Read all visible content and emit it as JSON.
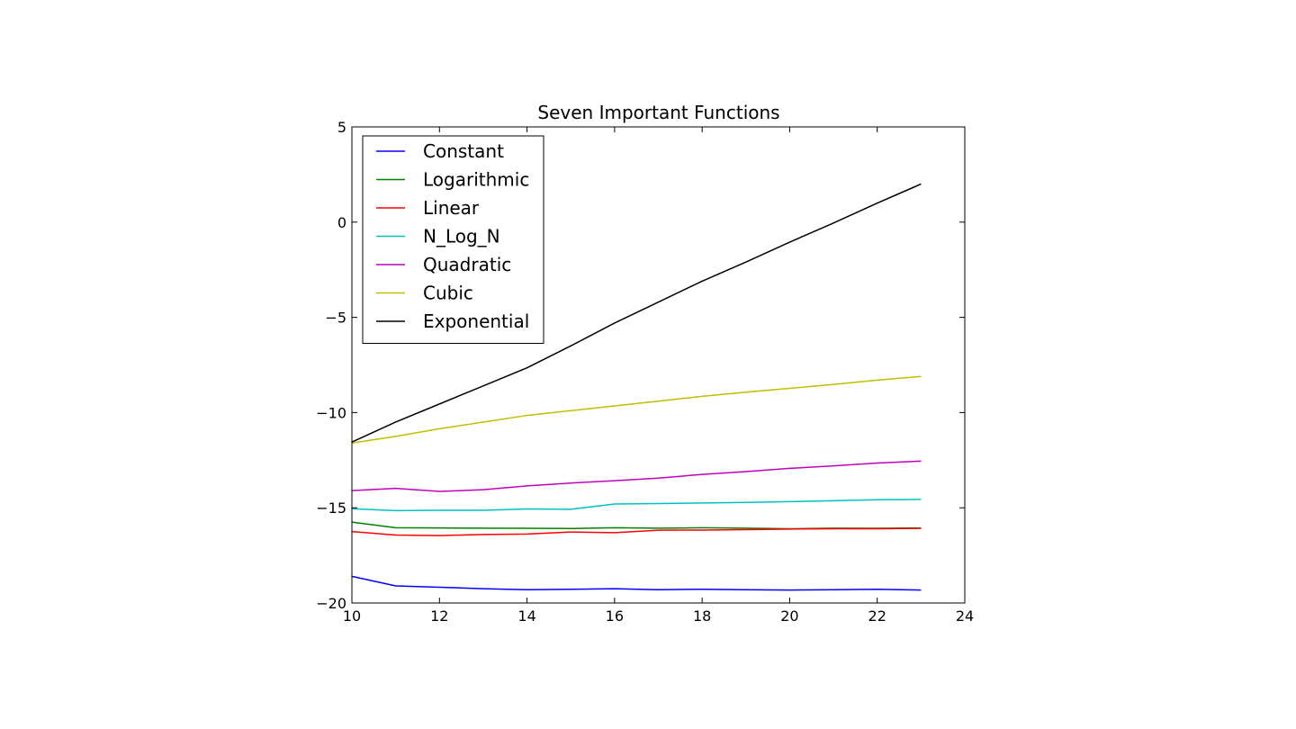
{
  "chart_data": {
    "type": "line",
    "title": "Seven Important Functions",
    "xlabel": "",
    "ylabel": "",
    "xlim": [
      10,
      24
    ],
    "ylim": [
      -20,
      5
    ],
    "x_ticks": [
      "10",
      "12",
      "14",
      "16",
      "18",
      "20",
      "22",
      "24"
    ],
    "y_ticks": [
      "5",
      "0",
      "−5",
      "−10",
      "−15",
      "−20"
    ],
    "grid": false,
    "legend_position": "top-left",
    "x": [
      10,
      11,
      12,
      13,
      14,
      15,
      16,
      17,
      18,
      19,
      20,
      21,
      22,
      23
    ],
    "series": [
      {
        "name": "Constant",
        "color": "#0000ff",
        "values": [
          -18.6,
          -19.1,
          -19.17,
          -19.25,
          -19.3,
          -19.28,
          -19.25,
          -19.3,
          -19.28,
          -19.3,
          -19.32,
          -19.3,
          -19.28,
          -19.32
        ]
      },
      {
        "name": "Logarithmic",
        "color": "#008000",
        "values": [
          -15.75,
          -16.05,
          -16.06,
          -16.07,
          -16.08,
          -16.09,
          -16.05,
          -16.07,
          -16.05,
          -16.07,
          -16.1,
          -16.07,
          -16.08,
          -16.06
        ]
      },
      {
        "name": "Linear",
        "color": "#ff0000",
        "values": [
          -16.25,
          -16.43,
          -16.46,
          -16.4,
          -16.38,
          -16.27,
          -16.31,
          -16.18,
          -16.17,
          -16.15,
          -16.12,
          -16.1,
          -16.1,
          -16.08
        ]
      },
      {
        "name": "N_Log_N",
        "color": "#00bfbf",
        "values": [
          -15.05,
          -15.15,
          -15.13,
          -15.13,
          -15.06,
          -15.08,
          -14.8,
          -14.78,
          -14.75,
          -14.72,
          -14.68,
          -14.63,
          -14.58,
          -14.56
        ]
      },
      {
        "name": "Quadratic",
        "color": "#bf00bf",
        "values": [
          -14.1,
          -13.98,
          -14.14,
          -14.05,
          -13.85,
          -13.7,
          -13.58,
          -13.44,
          -13.25,
          -13.1,
          -12.93,
          -12.8,
          -12.65,
          -12.55
        ]
      },
      {
        "name": "Cubic",
        "color": "#bfbf00",
        "values": [
          -11.6,
          -11.25,
          -10.85,
          -10.5,
          -10.15,
          -9.9,
          -9.65,
          -9.4,
          -9.15,
          -8.93,
          -8.73,
          -8.52,
          -8.3,
          -8.1
        ]
      },
      {
        "name": "Exponential",
        "color": "#000000",
        "values": [
          -11.55,
          -10.5,
          -9.55,
          -8.6,
          -7.65,
          -6.5,
          -5.3,
          -4.2,
          -3.1,
          -2.1,
          -1.05,
          -0.05,
          1.0,
          2.0
        ]
      }
    ]
  }
}
